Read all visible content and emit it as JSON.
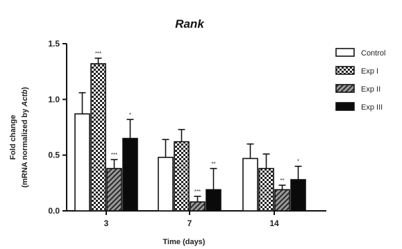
{
  "chart_data": {
    "type": "bar",
    "title": "Rank",
    "ylabel_line1": "Fold change",
    "ylabel_line2_prefix": "(mRNA normalized by ",
    "ylabel_line2_italic": "Actb",
    "ylabel_line2_suffix": ")",
    "xlabel": "Time (days)",
    "categories": [
      "3",
      "7",
      "14"
    ],
    "ylim": [
      0,
      1.5
    ],
    "yticks": [
      "0.0",
      "0.5",
      "1.0",
      "1.5"
    ],
    "legend_position": "right",
    "series": [
      {
        "name": "Control",
        "pattern": "open",
        "values": [
          0.87,
          0.48,
          0.47
        ],
        "errors": [
          0.19,
          0.16,
          0.13
        ],
        "significance": [
          "",
          "",
          ""
        ]
      },
      {
        "name": "Exp I",
        "pattern": "checker",
        "values": [
          1.32,
          0.62,
          0.38
        ],
        "errors": [
          0.05,
          0.11,
          0.13
        ],
        "significance": [
          "***",
          "",
          ""
        ]
      },
      {
        "name": "Exp II",
        "pattern": "hatched",
        "values": [
          0.38,
          0.08,
          0.19
        ],
        "errors": [
          0.08,
          0.05,
          0.04
        ],
        "significance": [
          "***",
          "***",
          "**"
        ]
      },
      {
        "name": "Exp III",
        "pattern": "solid",
        "values": [
          0.65,
          0.19,
          0.28
        ],
        "errors": [
          0.17,
          0.19,
          0.12
        ],
        "significance": [
          "*",
          "**",
          "*"
        ]
      }
    ]
  }
}
